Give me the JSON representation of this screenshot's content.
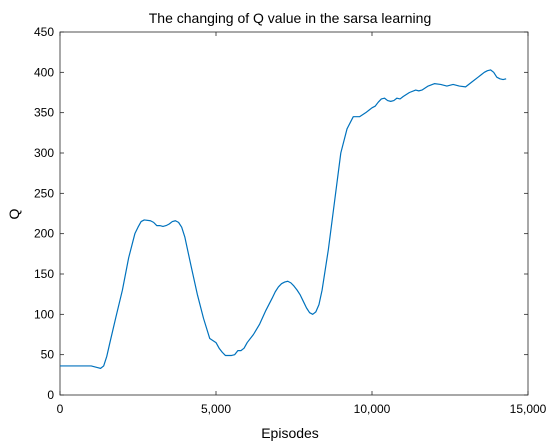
{
  "chart_data": {
    "type": "line",
    "title": "The changing of Q value in the sarsa learning",
    "xlabel": "Episodes",
    "ylabel": "Q",
    "xlim": [
      0,
      15000
    ],
    "ylim": [
      0,
      450
    ],
    "xticks": [
      0,
      5000,
      10000,
      15000
    ],
    "xtick_labels": [
      "0",
      "5,000",
      "10,000",
      "15,000"
    ],
    "yticks": [
      0,
      50,
      100,
      150,
      200,
      250,
      300,
      350,
      400,
      450
    ],
    "ytick_labels": [
      "0",
      "50",
      "100",
      "150",
      "200",
      "250",
      "300",
      "350",
      "400",
      "450"
    ],
    "grid": false,
    "box": true,
    "series": [
      {
        "color": "#0072BD",
        "x": [
          0,
          500,
          1000,
          1200,
          1300,
          1400,
          1500,
          1600,
          1800,
          2000,
          2200,
          2400,
          2500,
          2600,
          2700,
          2900,
          3000,
          3100,
          3200,
          3300,
          3400,
          3500,
          3600,
          3700,
          3800,
          3900,
          4000,
          4200,
          4400,
          4600,
          4800,
          5000,
          5100,
          5200,
          5300,
          5400,
          5500,
          5600,
          5700,
          5800,
          5900,
          6000,
          6200,
          6400,
          6600,
          6800,
          6900,
          7000,
          7100,
          7200,
          7300,
          7400,
          7500,
          7600,
          7700,
          7800,
          7900,
          8000,
          8100,
          8200,
          8300,
          8400,
          8600,
          8800,
          9000,
          9200,
          9400,
          9600,
          9800,
          9900,
          10000,
          10100,
          10200,
          10300,
          10400,
          10500,
          10600,
          10700,
          10800,
          10900,
          11000,
          11200,
          11400,
          11500,
          11600,
          11800,
          12000,
          12200,
          12400,
          12600,
          12800,
          13000,
          13200,
          13400,
          13500,
          13600,
          13700,
          13800,
          13900,
          14000,
          14100,
          14200,
          14300
        ],
        "y": [
          36,
          36,
          36,
          34,
          33,
          36,
          48,
          65,
          98,
          130,
          170,
          200,
          208,
          215,
          217,
          216,
          214,
          210,
          210,
          209,
          210,
          212,
          215,
          216,
          214,
          208,
          196,
          160,
          125,
          95,
          70,
          65,
          58,
          53,
          49,
          49,
          49,
          50,
          55,
          55,
          58,
          65,
          75,
          88,
          105,
          120,
          128,
          134,
          138,
          140,
          141,
          139,
          135,
          130,
          124,
          116,
          108,
          102,
          100,
          103,
          112,
          130,
          180,
          240,
          300,
          330,
          345,
          345,
          350,
          353,
          356,
          358,
          363,
          367,
          368,
          365,
          364,
          365,
          368,
          367,
          370,
          375,
          378,
          377,
          378,
          383,
          386,
          385,
          383,
          385,
          383,
          382,
          388,
          394,
          397,
          400,
          402,
          403,
          400,
          394,
          392,
          391,
          392
        ]
      }
    ]
  }
}
